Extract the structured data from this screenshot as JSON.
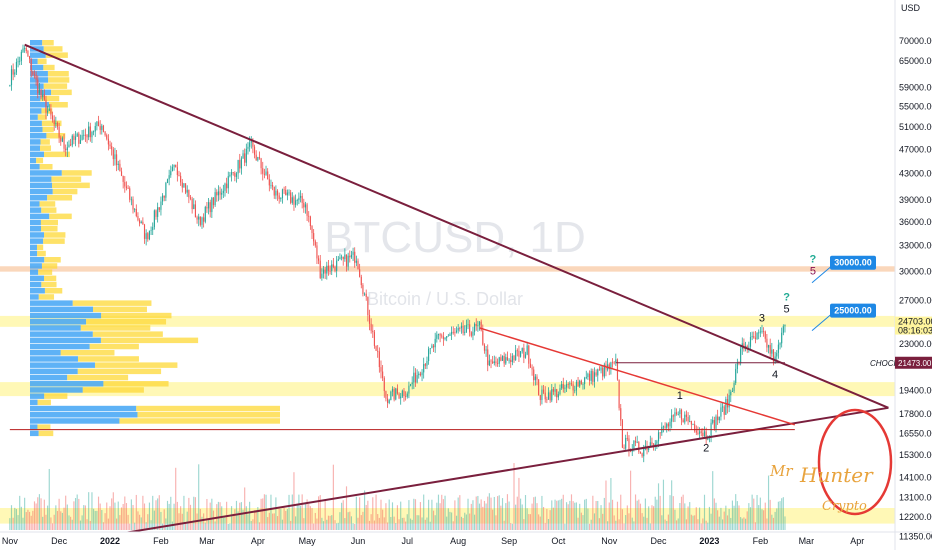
{
  "chart_data": {
    "type": "candlestick",
    "symbol": "BTCUSD, 1D",
    "subtitle": "Bitcoin / U.S. Dollar",
    "currency": "USD",
    "y_scale": "log",
    "ylim": [
      11000,
      75000
    ],
    "y_ticks": [
      70000,
      65000,
      59000,
      55000,
      51000,
      47000,
      43000,
      39000,
      36000,
      33000,
      30000,
      27000,
      23000,
      19400,
      17800,
      16550,
      15300,
      14100,
      13100,
      12200,
      11350
    ],
    "price_tags": {
      "current": {
        "price": "24703.00",
        "countdown": "08:16:03"
      },
      "choch": {
        "label": "CHOCH",
        "price": "21473.00"
      }
    },
    "x_ticks": [
      "Nov",
      "Dec",
      "2022",
      "Feb",
      "Mar",
      "Apr",
      "May",
      "Jun",
      "Jul",
      "Aug",
      "Sep",
      "Oct",
      "Nov",
      "Dec",
      "2023",
      "Feb",
      "Mar",
      "Apr"
    ],
    "series": [
      {
        "anchors": [
          [
            "2021-11-01",
            61000
          ],
          [
            "2021-11-10",
            68000
          ],
          [
            "2021-11-20",
            57000
          ],
          [
            "2021-12-04",
            47500
          ],
          [
            "2021-12-27",
            51500
          ],
          [
            "2022-01-10",
            41000
          ],
          [
            "2022-01-23",
            34000
          ],
          [
            "2022-02-10",
            44500
          ],
          [
            "2022-02-24",
            36000
          ],
          [
            "2022-03-28",
            47400
          ],
          [
            "2022-04-11",
            40000
          ],
          [
            "2022-04-30",
            38500
          ],
          [
            "2022-05-09",
            30000
          ],
          [
            "2022-05-31",
            31800
          ],
          [
            "2022-06-18",
            18900
          ],
          [
            "2022-07-01",
            19400
          ],
          [
            "2022-07-20",
            23500
          ],
          [
            "2022-08-14",
            24400
          ],
          [
            "2022-08-20",
            21200
          ],
          [
            "2022-09-12",
            22400
          ],
          [
            "2022-09-20",
            19000
          ],
          [
            "2022-10-01",
            19300
          ],
          [
            "2022-11-05",
            21300
          ],
          [
            "2022-11-09",
            16000
          ],
          [
            "2022-11-21",
            15600
          ],
          [
            "2022-12-14",
            17800
          ],
          [
            "2022-12-30",
            16500
          ],
          [
            "2023-01-12",
            18500
          ],
          [
            "2023-01-21",
            22700
          ],
          [
            "2023-02-02",
            23800
          ],
          [
            "2023-02-10",
            21600
          ],
          [
            "2023-02-16",
            24703
          ]
        ]
      }
    ],
    "trendlines": [
      {
        "from": [
          "2021-11-10",
          69000
        ],
        "to": [
          "2023-04-20",
          18200
        ]
      },
      {
        "from": [
          "2021-12-05",
          11100
        ],
        "to": [
          "2023-04-20",
          18200
        ]
      },
      {
        "from": [
          "2022-08-14",
          24400
        ],
        "to": [
          "2023-02-22",
          17100
        ]
      },
      {
        "from": [
          "2022-11-05",
          21473
        ],
        "to": [
          "2023-02-16",
          21473
        ]
      },
      {
        "from": [
          "2021-11-01",
          16800
        ],
        "to": [
          "2023-02-22",
          16800
        ]
      }
    ],
    "zones": [
      {
        "from": 30000,
        "to": 30600,
        "color": "#f8c9a4"
      },
      {
        "from": 24500,
        "to": 25500,
        "color": "#fff59d"
      },
      {
        "from": 19000,
        "to": 20000,
        "color": "#fff59d"
      },
      {
        "from": 11900,
        "to": 12600,
        "color": "#fff59d"
      }
    ],
    "annotations": {
      "waves": [
        {
          "label": "1",
          "date": "2022-12-14",
          "price": 18800
        },
        {
          "label": "2",
          "date": "2022-12-30",
          "price": 15500
        },
        {
          "label": "3",
          "date": "2023-02-02",
          "price": 25000
        },
        {
          "label": "4",
          "date": "2023-02-10",
          "price": 20300
        },
        {
          "label": "5",
          "date": "2023-02-17",
          "price": 25800,
          "question": "?"
        },
        {
          "label": "5",
          "date": "2023-03-05",
          "price": 29700,
          "question": "?"
        }
      ],
      "callouts": [
        {
          "label": "30000.00",
          "price": 31000
        },
        {
          "label": "25000.00",
          "price": 26000
        }
      ]
    },
    "logo": {
      "line1": "Mr",
      "line2": "Hunter",
      "line3": "Crypto"
    }
  }
}
